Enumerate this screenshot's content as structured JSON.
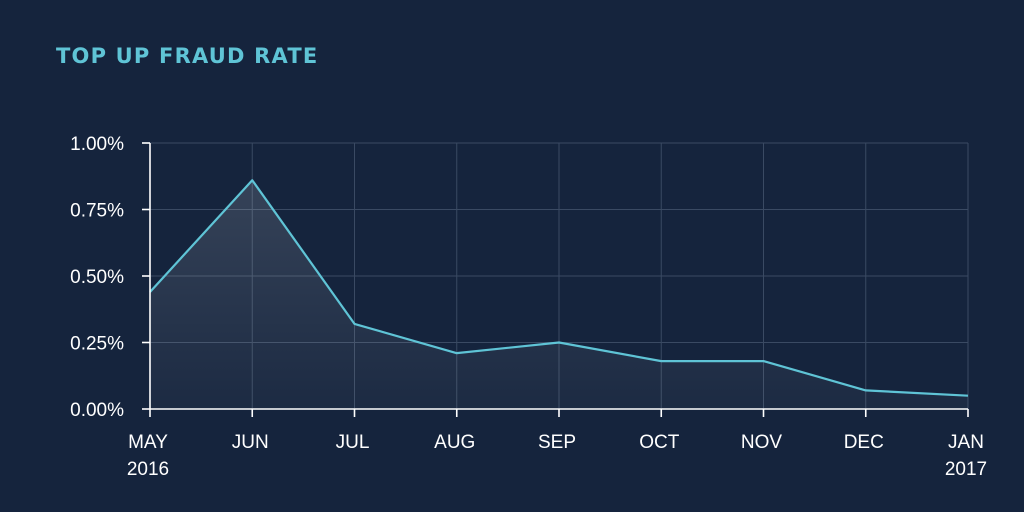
{
  "chart_data": {
    "type": "area",
    "title": "TOP UP FRAUD RATE",
    "xlabel": "",
    "ylabel": "",
    "categories": [
      [
        "MAY",
        "2016"
      ],
      [
        "JUN"
      ],
      [
        "JUL"
      ],
      [
        "AUG"
      ],
      [
        "SEP"
      ],
      [
        "OCT"
      ],
      [
        "NOV"
      ],
      [
        "DEC"
      ],
      [
        "JAN",
        "2017"
      ]
    ],
    "values": [
      0.44,
      0.86,
      0.32,
      0.21,
      0.25,
      0.18,
      0.18,
      0.07,
      0.05
    ],
    "ylim": [
      0,
      1.0
    ],
    "yticks": [
      0,
      0.25,
      0.5,
      0.75,
      1.0
    ],
    "ytick_labels": [
      "0.00%",
      "0.25%",
      "0.50%",
      "0.75%",
      "1.00%"
    ],
    "grid": true,
    "colors": {
      "background": "#15243d",
      "title": "#5fc4d6",
      "line": "#5fc4d6",
      "grid": "#3a4a63",
      "axis": "#ffffff",
      "text": "#ffffff"
    }
  }
}
